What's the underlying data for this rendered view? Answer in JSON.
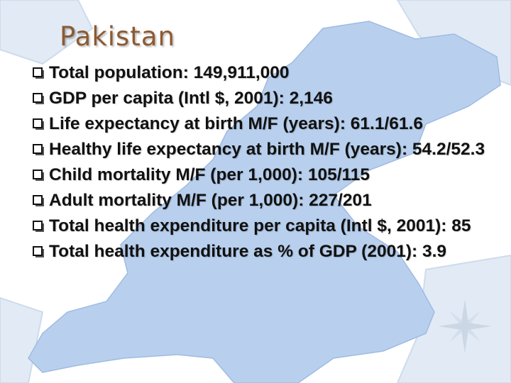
{
  "slide": {
    "title": "Pakistan",
    "map_color": "#b8d0ee",
    "title_color": "#8c5a32"
  },
  "bullets": [
    "Total population: 149,911,000",
    "GDP per capita (Intl $, 2001): 2,146",
    "Life expectancy at birth M/F (years): 61.1/61.6",
    "Healthy life expectancy at birth M/F (years): 54.2/52.3",
    "Child mortality M/F (per 1,000): 105/115",
    "Adult mortality M/F (per 1,000): 227/201",
    "Total health expenditure per capita (Intl $, 2001): 85",
    "Total health expenditure as % of GDP (2001): 3.9"
  ]
}
